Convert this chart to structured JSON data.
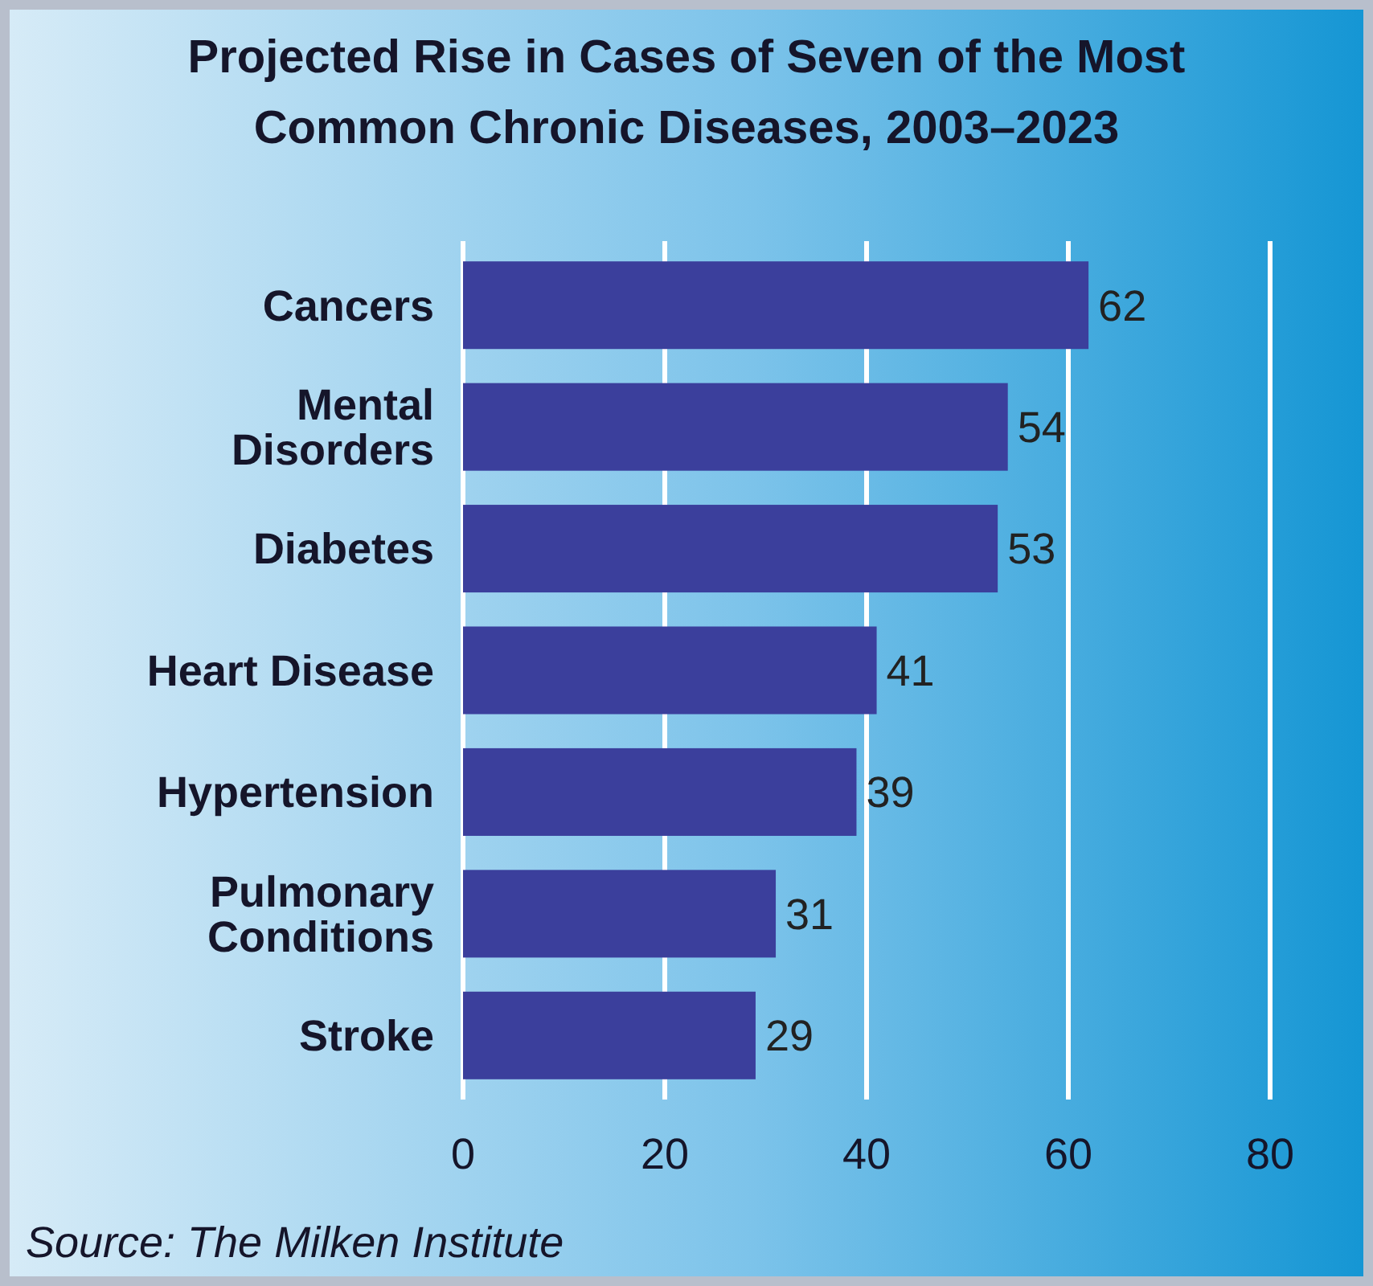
{
  "chart_data": {
    "type": "bar",
    "orientation": "horizontal",
    "title": "Projected Rise in Cases of Seven of the Most\nCommon Chronic Diseases, 2003–2023",
    "categories": [
      "Cancers",
      "Mental\nDisorders",
      "Diabetes",
      "Heart Disease",
      "Hypertension",
      "Pulmonary\nConditions",
      "Stroke"
    ],
    "values": [
      62,
      54,
      53,
      41,
      39,
      31,
      29
    ],
    "color": "#3b3f9c",
    "xlim": [
      0,
      80
    ],
    "xticks": [
      0,
      20,
      40,
      60,
      80
    ],
    "grid": "x",
    "data_labels": true,
    "annotations": [
      "Source: The Milken Institute"
    ]
  }
}
